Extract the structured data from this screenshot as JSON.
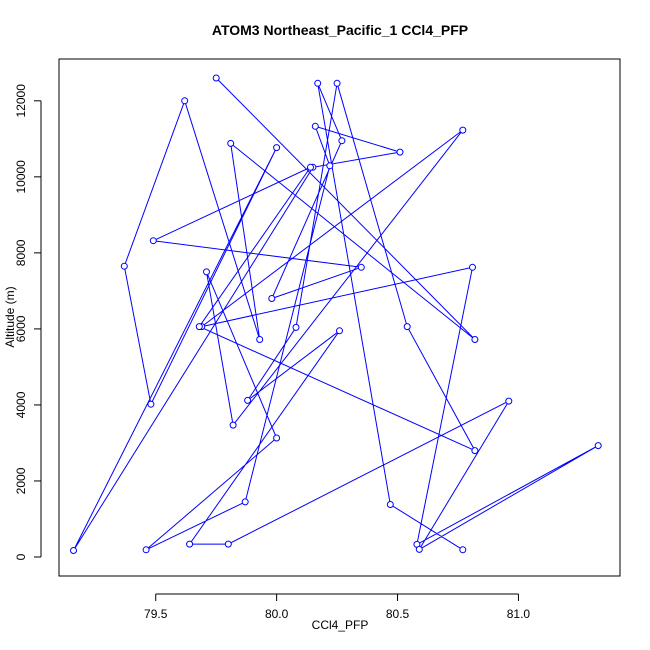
{
  "chart_data": {
    "type": "line",
    "title": "ATOM3 Northeast_Pacific_1 CCl4_PFP",
    "xlabel": "CCl4_PFP",
    "ylabel": "Altitude (m)",
    "xlim": [
      79.1,
      81.42
    ],
    "ylim": [
      -500,
      13100
    ],
    "xticks": [
      79.5,
      80.0,
      80.5,
      81.0
    ],
    "xtick_labels": [
      "79.5",
      "80.0",
      "80.5",
      "81.0"
    ],
    "yticks": [
      0,
      2000,
      4000,
      6000,
      8000,
      10000,
      12000
    ],
    "ytick_labels": [
      "0",
      "2000",
      "4000",
      "6000",
      "8000",
      "10000",
      "12000"
    ],
    "grid": false,
    "marker": "open-circle",
    "line_color": "#0000ff",
    "series": [
      {
        "x": [
          79.75,
          80.82,
          79.81,
          79.93,
          79.62,
          79.37,
          79.48,
          80.0,
          79.16,
          80.15,
          80.51,
          80.16,
          80.22,
          79.87,
          79.46,
          80.0,
          79.71,
          79.82,
          80.77,
          79.69,
          80.81,
          80.58,
          81.33,
          80.59,
          80.96,
          79.8,
          79.64,
          80.26,
          79.88,
          80.08,
          80.25,
          80.54,
          80.82,
          79.68,
          80.14,
          79.49,
          80.35,
          79.98,
          80.27,
          80.17,
          80.47,
          80.77
        ],
        "y": [
          12600,
          5720,
          10880,
          5720,
          12000,
          7650,
          4020,
          10770,
          170,
          10250,
          10650,
          11330,
          10290,
          1450,
          190,
          3130,
          7500,
          3470,
          11230,
          6060,
          7620,
          330,
          2930,
          200,
          4100,
          340,
          340,
          5950,
          4120,
          6040,
          12460,
          6060,
          2800,
          6060,
          10250,
          8320,
          7620,
          6800,
          10950,
          12460,
          1380,
          190
        ]
      }
    ]
  }
}
